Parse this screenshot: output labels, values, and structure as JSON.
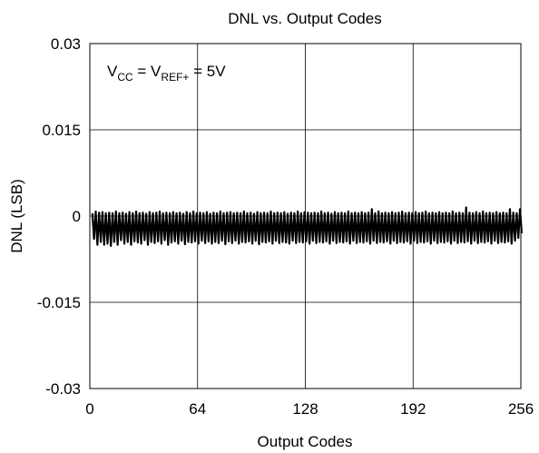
{
  "chart_data": {
    "type": "line",
    "title": "DNL vs. Output Codes",
    "xlabel": "Output Codes",
    "ylabel": "DNL (LSB)",
    "xlim": [
      0,
      256
    ],
    "ylim": [
      -0.03,
      0.03
    ],
    "x_ticks": [
      0,
      64,
      128,
      192,
      256
    ],
    "x_tick_labels": [
      "0",
      "64",
      "128",
      "192",
      "256"
    ],
    "y_ticks": [
      0.03,
      0.015,
      0,
      -0.015,
      -0.03
    ],
    "y_tick_labels": [
      "0.03",
      "0.015",
      "0",
      "-0.015",
      "-0.03"
    ],
    "grid": true,
    "annotation": {
      "v1": "V",
      "sub1": "CC",
      "eq": " = V",
      "sub2": "REF+",
      "rest": " = 5V"
    },
    "series": [
      {
        "color": "#000000",
        "x": [
          0,
          1,
          2,
          3,
          4,
          5,
          6,
          7,
          8,
          9,
          10,
          11,
          12,
          13,
          14,
          15,
          16,
          17,
          18,
          19,
          20,
          21,
          22,
          23,
          24,
          25,
          26,
          27,
          28,
          29,
          30,
          31,
          32,
          33,
          34,
          35,
          36,
          37,
          38,
          39,
          40,
          41,
          42,
          43,
          44,
          45,
          46,
          47,
          48,
          49,
          50,
          51,
          52,
          53,
          54,
          55,
          56,
          57,
          58,
          59,
          60,
          61,
          62,
          63,
          64,
          65,
          66,
          67,
          68,
          69,
          70,
          71,
          72,
          73,
          74,
          75,
          76,
          77,
          78,
          79,
          80,
          81,
          82,
          83,
          84,
          85,
          86,
          87,
          88,
          89,
          90,
          91,
          92,
          93,
          94,
          95,
          96,
          97,
          98,
          99,
          100,
          101,
          102,
          103,
          104,
          105,
          106,
          107,
          108,
          109,
          110,
          111,
          112,
          113,
          114,
          115,
          116,
          117,
          118,
          119,
          120,
          121,
          122,
          123,
          124,
          125,
          126,
          127,
          128,
          129,
          130,
          131,
          132,
          133,
          134,
          135,
          136,
          137,
          138,
          139,
          140,
          141,
          142,
          143,
          144,
          145,
          146,
          147,
          148,
          149,
          150,
          151,
          152,
          153,
          154,
          155,
          156,
          157,
          158,
          159,
          160,
          161,
          162,
          163,
          164,
          165,
          166,
          167,
          168,
          169,
          170,
          171,
          172,
          173,
          174,
          175,
          176,
          177,
          178,
          179,
          180,
          181,
          182,
          183,
          184,
          185,
          186,
          187,
          188,
          189,
          190,
          191,
          192,
          193,
          194,
          195,
          196,
          197,
          198,
          199,
          200,
          201,
          202,
          203,
          204,
          205,
          206,
          207,
          208,
          209,
          210,
          211,
          212,
          213,
          214,
          215,
          216,
          217,
          218,
          219,
          220,
          221,
          222,
          223,
          224,
          225,
          226,
          227,
          228,
          229,
          230,
          231,
          232,
          233,
          234,
          235,
          236,
          237,
          238,
          239,
          240,
          241,
          242,
          243,
          244,
          245,
          246,
          247,
          248,
          249,
          250,
          251,
          252,
          253,
          254,
          255
        ],
        "y": [
          0.0005,
          -0.004,
          0.0008,
          -0.005,
          0.0006,
          -0.0045,
          0.0007,
          -0.005,
          0.0005,
          -0.0048,
          0.0006,
          -0.0052,
          0.0005,
          -0.0045,
          0.0008,
          -0.005,
          0.0005,
          -0.0042,
          0.0006,
          -0.0048,
          0.0004,
          -0.0045,
          0.0007,
          -0.005,
          0.0005,
          -0.0044,
          0.0008,
          -0.0046,
          0.0005,
          -0.0048,
          0.0006,
          -0.0042,
          0.0004,
          -0.005,
          0.0007,
          -0.0045,
          0.0005,
          -0.0047,
          0.0006,
          -0.0044,
          0.0008,
          -0.0048,
          0.0005,
          -0.0042,
          0.0006,
          -0.005,
          0.0005,
          -0.0046,
          0.0007,
          -0.0044,
          0.0005,
          -0.0048,
          0.0006,
          -0.0043,
          0.0004,
          -0.0049,
          0.0007,
          -0.0045,
          0.0005,
          -0.0046,
          0.0008,
          -0.0044,
          0.0005,
          -0.0048,
          0.0006,
          -0.0043,
          0.0005,
          -0.0047,
          0.0007,
          -0.0044,
          0.0004,
          -0.0048,
          0.0006,
          -0.0045,
          0.0005,
          -0.0047,
          0.0008,
          -0.0043,
          0.0005,
          -0.0049,
          0.0006,
          -0.0044,
          0.0007,
          -0.0047,
          0.0005,
          -0.0043,
          0.0006,
          -0.0048,
          0.0005,
          -0.0045,
          0.0008,
          -0.0046,
          0.0005,
          -0.0044,
          0.0006,
          -0.0048,
          0.0004,
          -0.0043,
          0.0007,
          -0.0049,
          0.0005,
          -0.0045,
          0.0006,
          -0.0046,
          0.0005,
          -0.0044,
          0.0008,
          -0.0048,
          0.0005,
          -0.0043,
          0.0006,
          -0.0047,
          0.0005,
          -0.0045,
          0.0007,
          -0.0046,
          0.0004,
          -0.0048,
          0.0006,
          -0.0043,
          0.0005,
          -0.0047,
          0.0008,
          -0.0045,
          0.0005,
          -0.0046,
          0.0007,
          -0.0044,
          0.0006,
          -0.0048,
          0.0005,
          -0.0043,
          0.0006,
          -0.0047,
          0.0005,
          -0.0045,
          0.0008,
          -0.0046,
          0.0005,
          -0.0044,
          0.0006,
          -0.0048,
          0.0004,
          -0.0043,
          0.0007,
          -0.0047,
          0.0005,
          -0.0045,
          0.0006,
          -0.0046,
          0.0005,
          -0.0044,
          0.0008,
          -0.0048,
          0.0005,
          -0.0043,
          0.0006,
          -0.0047,
          0.0005,
          -0.0045,
          0.0007,
          -0.0046,
          0.0005,
          -0.0044,
          0.0006,
          -0.0048,
          0.0012,
          -0.0043,
          0.0005,
          -0.0047,
          0.0008,
          -0.0045,
          0.0005,
          -0.0046,
          0.0006,
          -0.0044,
          0.0005,
          -0.0048,
          0.0007,
          -0.0043,
          0.0005,
          -0.0047,
          0.0006,
          -0.0045,
          0.0008,
          -0.0046,
          0.0005,
          -0.0044,
          0.0006,
          -0.0048,
          0.0005,
          -0.0043,
          0.0007,
          -0.0047,
          0.0005,
          -0.0045,
          0.0006,
          -0.0046,
          0.0008,
          -0.0044,
          0.0005,
          -0.0048,
          0.0006,
          -0.0043,
          0.0005,
          -0.0047,
          0.0007,
          -0.0045,
          0.0005,
          -0.0046,
          0.0006,
          -0.0044,
          0.0005,
          -0.0048,
          0.0008,
          -0.0043,
          0.0005,
          -0.0047,
          0.0006,
          -0.0045,
          0.0005,
          -0.0046,
          0.0015,
          -0.0044,
          0.0006,
          -0.0048,
          0.0005,
          -0.0043,
          0.0007,
          -0.0047,
          0.0005,
          -0.0045,
          0.0008,
          -0.0046,
          0.0005,
          -0.0044,
          0.0006,
          -0.0048,
          0.0005,
          -0.0043,
          0.0007,
          -0.0047,
          0.0005,
          -0.0045,
          0.0006,
          -0.0046,
          0.0005,
          -0.0044,
          0.0012,
          -0.0048,
          0.0006,
          -0.0043,
          0.0005,
          -0.0038,
          0.0012,
          -0.003
        ]
      }
    ]
  }
}
